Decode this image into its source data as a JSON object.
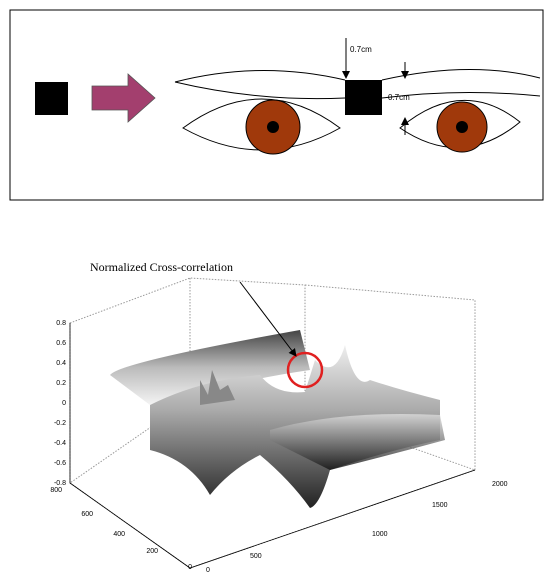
{
  "diagram": {
    "gap_labels": [
      "0.7cm",
      "0.7cm"
    ]
  },
  "plot": {
    "annotation": "Normalized Cross-correlation",
    "zticks": [
      "0.8",
      "0.6",
      "0.4",
      "0.2",
      "0",
      "-0.2",
      "-0.4",
      "-0.6",
      "-0.8"
    ],
    "yticks": [
      "800",
      "600",
      "400",
      "200",
      "0"
    ],
    "xticks": [
      "0",
      "500",
      "1000",
      "1500",
      "2000"
    ]
  }
}
